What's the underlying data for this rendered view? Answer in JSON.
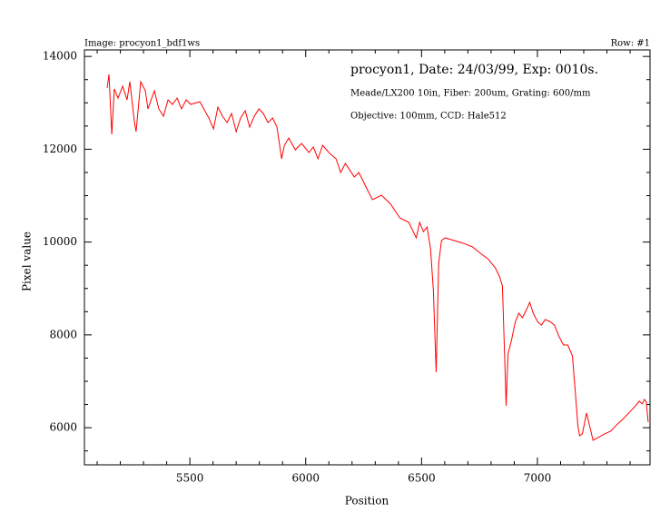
{
  "chart_data": {
    "type": "line",
    "image_label": "Image: procyon1_bdf1ws",
    "row_label": "Row: #1",
    "annotations": [
      "procyon1, Date: 24/03/99, Exp: 0010s.",
      "Meade/LX200 10in, Fiber: 200um, Grating: 600/mm",
      "Objective: 100mm, CCD: Hale512"
    ],
    "xlabel": "Position",
    "ylabel": "Pixel value",
    "xlim": [
      5045,
      7486
    ],
    "ylim": [
      5200,
      14140
    ],
    "xticks": [
      5500,
      6000,
      6500,
      7000
    ],
    "yticks": [
      6000,
      8000,
      10000,
      12000,
      14000
    ],
    "xminorticks": [
      5100,
      5200,
      5300,
      5400,
      5600,
      5700,
      5800,
      5900,
      6100,
      6200,
      6300,
      6400,
      6600,
      6700,
      6800,
      6900,
      7100,
      7200,
      7300,
      7400
    ],
    "yminorticks": [
      5500,
      6500,
      7000,
      7500,
      8500,
      9000,
      9500,
      10500,
      11000,
      11500,
      12500,
      13000,
      13500
    ],
    "series": [
      {
        "color": "#ff0000",
        "x": [
          5143,
          5151,
          5163,
          5174,
          5190,
          5210,
          5229,
          5241,
          5261,
          5268,
          5288,
          5308,
          5319,
          5347,
          5366,
          5386,
          5406,
          5425,
          5445,
          5464,
          5484,
          5504,
          5543,
          5582,
          5602,
          5621,
          5641,
          5661,
          5680,
          5700,
          5719,
          5739,
          5758,
          5778,
          5798,
          5817,
          5837,
          5857,
          5876,
          5896,
          5908,
          5927,
          5955,
          5982,
          6014,
          6033,
          6053,
          6073,
          6100,
          6131,
          6151,
          6171,
          6210,
          6229,
          6249,
          6268,
          6288,
          6327,
          6367,
          6406,
          6445,
          6477,
          6492,
          6508,
          6524,
          6539,
          6551,
          6563,
          6574,
          6586,
          6602,
          6641,
          6680,
          6720,
          6759,
          6786,
          6818,
          6837,
          6849,
          6857,
          6865,
          6873,
          6888,
          6904,
          6920,
          6935,
          6955,
          6967,
          6982,
          7002,
          7018,
          7033,
          7053,
          7073,
          7092,
          7112,
          7131,
          7151,
          7163,
          7175,
          7182,
          7194,
          7212,
          7226,
          7240,
          7262,
          7290,
          7316,
          7342,
          7368,
          7394,
          7420,
          7440,
          7452,
          7462,
          7470,
          7478
        ],
        "values": [
          13318,
          13612,
          12321,
          13299,
          13103,
          13358,
          13064,
          13456,
          12575,
          12380,
          13456,
          13260,
          12869,
          13260,
          12869,
          12712,
          13064,
          12966,
          13103,
          12869,
          13064,
          12966,
          13025,
          12673,
          12438,
          12908,
          12712,
          12575,
          12771,
          12380,
          12673,
          12830,
          12477,
          12712,
          12869,
          12771,
          12575,
          12673,
          12477,
          11793,
          12086,
          12243,
          11988,
          12125,
          11930,
          12047,
          11793,
          12086,
          11930,
          11793,
          11499,
          11695,
          11402,
          11499,
          11304,
          11108,
          10913,
          11010,
          10815,
          10521,
          10423,
          10091,
          10423,
          10227,
          10325,
          9837,
          8957,
          7196,
          9543,
          10032,
          10091,
          10032,
          9974,
          9896,
          9739,
          9641,
          9446,
          9250,
          9055,
          7783,
          6472,
          7588,
          7881,
          8272,
          8467,
          8369,
          8565,
          8702,
          8467,
          8272,
          8213,
          8330,
          8291,
          8213,
          7979,
          7783,
          7783,
          7549,
          6805,
          6023,
          5827,
          5866,
          6316,
          6023,
          5729,
          5788,
          5866,
          5925,
          6062,
          6180,
          6316,
          6453,
          6571,
          6512,
          6610,
          6551,
          6121
        ]
      }
    ]
  }
}
